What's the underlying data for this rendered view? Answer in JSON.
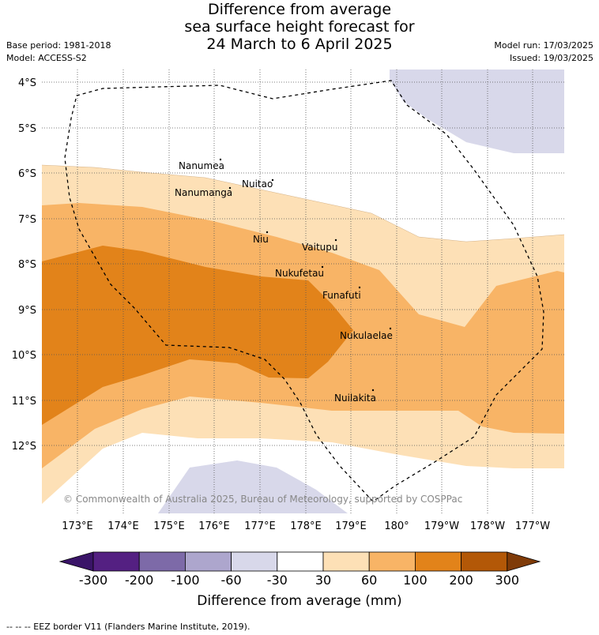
{
  "title_lines": [
    "Difference from average",
    "sea surface height forecast for",
    "24 March to 6 April 2025"
  ],
  "base_period": "Base period: 1981-2018",
  "model": "Model: ACCESS-S2",
  "model_run": "Model run: 17/03/2025",
  "issued": "Issued: 19/03/2025",
  "copyright": "© Commonwealth of Australia 2025, Bureau of Meteorology, supported by COSPPac",
  "lat_ticks": [
    "4°S",
    "5°S",
    "6°S",
    "7°S",
    "8°S",
    "9°S",
    "10°S",
    "11°S",
    "12°S"
  ],
  "lon_ticks": [
    "173°E",
    "174°E",
    "175°E",
    "176°E",
    "177°E",
    "178°E",
    "179°E",
    "180°",
    "179°W",
    "178°W",
    "177°W"
  ],
  "islands": [
    {
      "name": "Nanumea"
    },
    {
      "name": "Nuitao"
    },
    {
      "name": "Nanumanga"
    },
    {
      "name": "Niu"
    },
    {
      "name": "Vaitupu"
    },
    {
      "name": "Nukufetau"
    },
    {
      "name": "Funafuti"
    },
    {
      "name": "Nukulaelae"
    },
    {
      "name": "Nuilakita"
    }
  ],
  "colorbar": {
    "labels": [
      "-300",
      "-200",
      "-100",
      "-60",
      "-30",
      "30",
      "60",
      "100",
      "200",
      "300"
    ],
    "colors": {
      "below_min": "#3a1468",
      "bins": [
        "#542082",
        "#7d6aa8",
        "#ada6cd",
        "#d8d8ea",
        "#ffffff",
        "#fde0b6",
        "#f8b466",
        "#e2831a",
        "#b35807"
      ],
      "above_max": "#7f3b08"
    },
    "title": "Difference from average (mm)"
  },
  "footer": "--  --  -- EEZ border V11 (Flanders Marine Institute, 2019)."
}
